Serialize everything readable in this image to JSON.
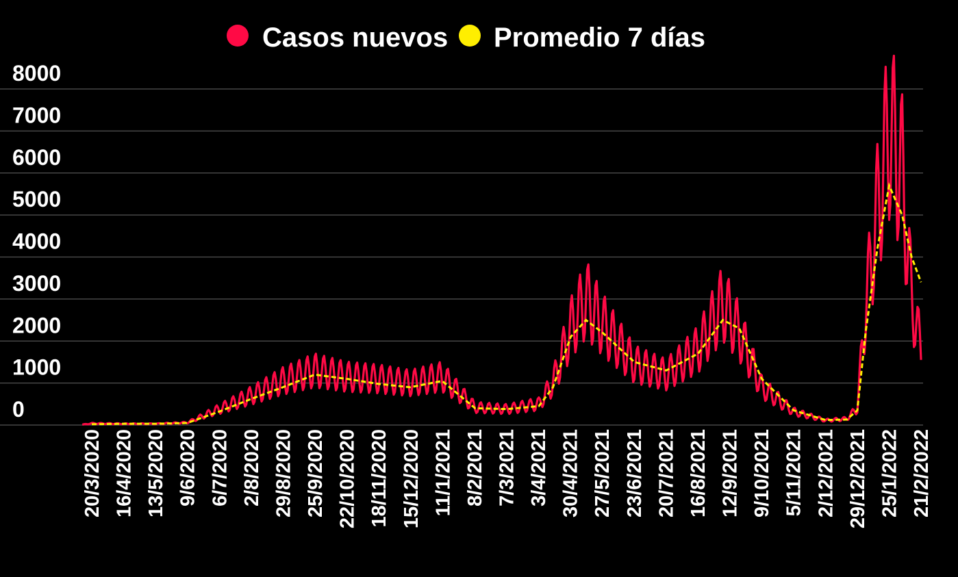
{
  "chart_data": {
    "type": "line",
    "title": "",
    "xlabel": "",
    "ylabel": "",
    "ylim": [
      0,
      8000
    ],
    "yticks": [
      0,
      1000,
      2000,
      3000,
      4000,
      5000,
      6000,
      7000,
      8000
    ],
    "grid": true,
    "legend": {
      "position": "top-center"
    },
    "x_tick_labels": [
      "20/3/2020",
      "16/4/2020",
      "13/5/2020",
      "9/6/2020",
      "6/7/2020",
      "2/8/2020",
      "29/8/2020",
      "25/9/2020",
      "22/10/2020",
      "18/11/2020",
      "15/12/2020",
      "11/1/2021",
      "8/2/2021",
      "7/3/2021",
      "3/4/2021",
      "30/4/2021",
      "27/5/2021",
      "23/6/2021",
      "20/7/2021",
      "16/8/2021",
      "12/9/2021",
      "9/10/2021",
      "5/11/2021",
      "2/12/2021",
      "29/12/2021",
      "25/1/2022",
      "21/2/2022"
    ],
    "x_start_date": "2020-03-20",
    "x_end_date": "2022-02-21",
    "series": [
      {
        "name": "Casos nuevos",
        "color": "#ff0a45",
        "style": "solid",
        "daily_pattern": "weekly-oscillation",
        "points": [
          [
            "2020-03-12",
            10
          ],
          [
            "2020-03-20",
            40
          ],
          [
            "2020-04-16",
            30
          ],
          [
            "2020-05-13",
            30
          ],
          [
            "2020-06-09",
            60
          ],
          [
            "2020-07-06",
            380
          ],
          [
            "2020-08-02",
            700
          ],
          [
            "2020-08-29",
            1050
          ],
          [
            "2020-09-25",
            1300
          ],
          [
            "2020-10-22",
            1150
          ],
          [
            "2020-11-18",
            1100
          ],
          [
            "2020-12-15",
            1000
          ],
          [
            "2021-01-11",
            1150
          ],
          [
            "2021-02-08",
            420
          ],
          [
            "2021-03-07",
            380
          ],
          [
            "2021-04-03",
            500
          ],
          [
            "2021-04-15",
            1000
          ],
          [
            "2021-04-30",
            2300
          ],
          [
            "2021-05-13",
            3000
          ],
          [
            "2021-05-27",
            2400
          ],
          [
            "2021-06-23",
            1450
          ],
          [
            "2021-07-20",
            1200
          ],
          [
            "2021-08-16",
            1800
          ],
          [
            "2021-09-06",
            2900
          ],
          [
            "2021-09-20",
            2200
          ],
          [
            "2021-10-09",
            900
          ],
          [
            "2021-11-05",
            320
          ],
          [
            "2021-12-02",
            110
          ],
          [
            "2021-12-20",
            150
          ],
          [
            "2021-12-29",
            400
          ],
          [
            "2022-01-05",
            2800
          ],
          [
            "2022-01-15",
            5100
          ],
          [
            "2022-01-25",
            7100
          ],
          [
            "2022-02-05",
            6000
          ],
          [
            "2022-02-13",
            3000
          ],
          [
            "2022-02-21",
            1800
          ]
        ]
      },
      {
        "name": "Promedio 7 días",
        "color": "#ffee00",
        "style": "dashed",
        "points": [
          [
            "2020-03-20",
            20
          ],
          [
            "2020-04-16",
            30
          ],
          [
            "2020-05-13",
            30
          ],
          [
            "2020-06-09",
            50
          ],
          [
            "2020-07-06",
            320
          ],
          [
            "2020-08-02",
            620
          ],
          [
            "2020-08-29",
            900
          ],
          [
            "2020-09-25",
            1200
          ],
          [
            "2020-10-22",
            1100
          ],
          [
            "2020-11-18",
            980
          ],
          [
            "2020-12-15",
            900
          ],
          [
            "2021-01-11",
            1050
          ],
          [
            "2021-02-08",
            400
          ],
          [
            "2021-03-07",
            380
          ],
          [
            "2021-04-03",
            450
          ],
          [
            "2021-04-15",
            900
          ],
          [
            "2021-04-30",
            2100
          ],
          [
            "2021-05-13",
            2500
          ],
          [
            "2021-05-27",
            2200
          ],
          [
            "2021-06-23",
            1500
          ],
          [
            "2021-07-20",
            1300
          ],
          [
            "2021-08-16",
            1700
          ],
          [
            "2021-09-06",
            2500
          ],
          [
            "2021-09-20",
            2300
          ],
          [
            "2021-10-09",
            1100
          ],
          [
            "2021-11-05",
            350
          ],
          [
            "2021-12-02",
            120
          ],
          [
            "2021-12-20",
            130
          ],
          [
            "2021-12-29",
            350
          ],
          [
            "2022-01-05",
            2200
          ],
          [
            "2022-01-15",
            4200
          ],
          [
            "2022-01-25",
            5700
          ],
          [
            "2022-02-05",
            5000
          ],
          [
            "2022-02-13",
            4000
          ],
          [
            "2022-02-21",
            3400
          ]
        ]
      }
    ]
  }
}
